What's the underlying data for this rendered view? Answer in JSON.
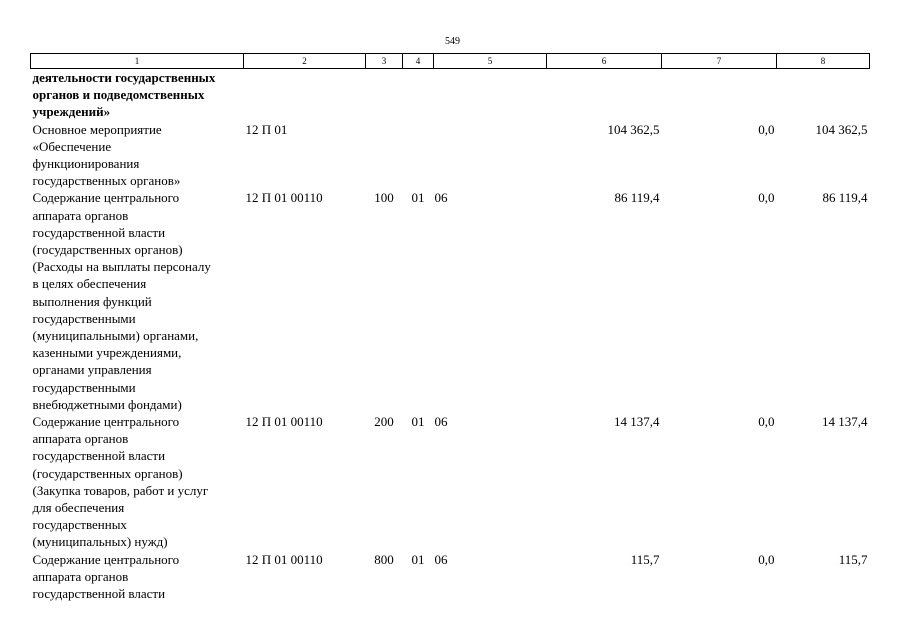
{
  "page_number": "549",
  "columns": [
    "1",
    "2",
    "3",
    "4",
    "5",
    "6",
    "7",
    "8"
  ],
  "rows": [
    {
      "name": "деятельности государственных\nорганов и подведомственных\nучреждений»",
      "code": "",
      "vr": "",
      "rz": "",
      "pr": "",
      "c6": "",
      "c7": "",
      "c8": "",
      "bold": true
    },
    {
      "name": "Основное мероприятие\n«Обеспечение\nфункционирования\nгосударственных органов»",
      "code": "12 П 01",
      "vr": "",
      "rz": "",
      "pr": "",
      "c6": "104 362,5",
      "c7": "0,0",
      "c8": "104 362,5",
      "bold": false
    },
    {
      "name": "Содержание центрального\nаппарата органов\nгосударственной власти\n(государственных органов)\n(Расходы на выплаты персоналу\nв целях обеспечения\nвыполнения функций\nгосударственными\n(муниципальными) органами,\nказенными учреждениями,\nорганами управления\nгосударственными\nвнебюджетными фондами)",
      "code": "12 П 01 00110",
      "vr": "100",
      "rz": "01",
      "pr": "06",
      "c6": "86 119,4",
      "c7": "0,0",
      "c8": "86 119,4",
      "bold": false
    },
    {
      "name": "Содержание центрального\nаппарата органов\nгосударственной власти\n(государственных органов)\n(Закупка товаров, работ и услуг\nдля обеспечения\nгосударственных\n(муниципальных) нужд)",
      "code": "12 П 01 00110",
      "vr": "200",
      "rz": "01",
      "pr": "06",
      "c6": "14 137,4",
      "c7": "0,0",
      "c8": "14 137,4",
      "bold": false
    },
    {
      "name": "Содержание центрального\nаппарата органов\nгосударственной власти",
      "code": "12 П 01 00110",
      "vr": "800",
      "rz": "01",
      "pr": "06",
      "c6": "115,7",
      "c7": "0,0",
      "c8": "115,7",
      "bold": false
    }
  ]
}
